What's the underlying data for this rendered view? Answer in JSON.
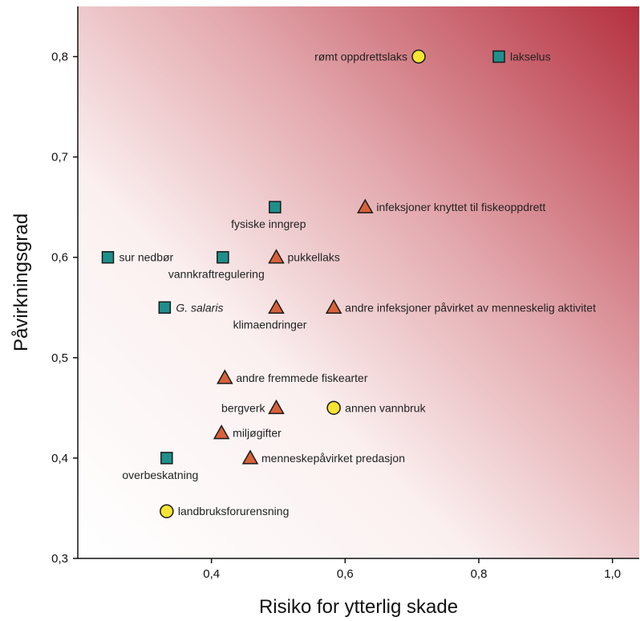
{
  "chart_data": {
    "type": "scatter",
    "xlabel": "Risiko for ytterlig skade",
    "ylabel": "Påvirkningsgrad",
    "xlim": [
      0.2,
      1.04
    ],
    "ylim": [
      0.3,
      0.85
    ],
    "x_ticks": [
      {
        "value": 0.4,
        "label": "0,4"
      },
      {
        "value": 0.6,
        "label": "0,6"
      },
      {
        "value": 0.8,
        "label": "0,8"
      },
      {
        "value": 1.0,
        "label": "1,0"
      }
    ],
    "y_ticks": [
      {
        "value": 0.3,
        "label": "0,3"
      },
      {
        "value": 0.4,
        "label": "0,4"
      },
      {
        "value": 0.5,
        "label": "0,5"
      },
      {
        "value": 0.6,
        "label": "0,6"
      },
      {
        "value": 0.7,
        "label": "0,7"
      },
      {
        "value": 0.8,
        "label": "0,8"
      }
    ],
    "grid": false,
    "background": "gradient white (bottom-left) to dark red (top-right)",
    "marker_styles": {
      "square": {
        "fill": "#1f8f8b",
        "stroke": "#1a1a1a"
      },
      "triangle": {
        "fill": "#d8613a",
        "stroke": "#1a1a1a"
      },
      "circle": {
        "fill": "#f5e431",
        "stroke": "#1a1a1a"
      }
    },
    "points": [
      {
        "label": "rømt oppdrettslaks",
        "x": 0.71,
        "y": 0.8,
        "marker": "circle",
        "label_pos": "left"
      },
      {
        "label": "lakselus",
        "x": 0.83,
        "y": 0.8,
        "marker": "square",
        "label_pos": "right"
      },
      {
        "label": "fysiske inngrep",
        "x": 0.495,
        "y": 0.65,
        "marker": "square",
        "label_pos": "below"
      },
      {
        "label": "infeksjoner knyttet til fiskeoppdrett",
        "x": 0.63,
        "y": 0.65,
        "marker": "triangle",
        "label_pos": "right"
      },
      {
        "label": "sur nedbør",
        "x": 0.245,
        "y": 0.6,
        "marker": "square",
        "label_pos": "right"
      },
      {
        "label": "vannkraftregulering",
        "x": 0.417,
        "y": 0.6,
        "marker": "square",
        "label_pos": "below"
      },
      {
        "label": "pukkellaks",
        "x": 0.497,
        "y": 0.6,
        "marker": "triangle",
        "label_pos": "right"
      },
      {
        "label": "G. salaris",
        "x": 0.33,
        "y": 0.55,
        "marker": "square",
        "label_pos": "right",
        "italic": true
      },
      {
        "label": "klimaendringer",
        "x": 0.497,
        "y": 0.55,
        "marker": "triangle",
        "label_pos": "below"
      },
      {
        "label": "andre infeksjoner påvirket av menneskelig aktivitet",
        "x": 0.583,
        "y": 0.55,
        "marker": "triangle",
        "label_pos": "right"
      },
      {
        "label": "andre fremmede fiskearter",
        "x": 0.42,
        "y": 0.48,
        "marker": "triangle",
        "label_pos": "right"
      },
      {
        "label": "bergverk",
        "x": 0.497,
        "y": 0.45,
        "marker": "triangle",
        "label_pos": "left"
      },
      {
        "label": "annen vannbruk",
        "x": 0.583,
        "y": 0.45,
        "marker": "circle",
        "label_pos": "right"
      },
      {
        "label": "miljøgifter",
        "x": 0.415,
        "y": 0.425,
        "marker": "triangle",
        "label_pos": "right"
      },
      {
        "label": "overbeskatning",
        "x": 0.333,
        "y": 0.4,
        "marker": "square",
        "label_pos": "below"
      },
      {
        "label": "menneskepåvirket predasjon",
        "x": 0.458,
        "y": 0.4,
        "marker": "triangle",
        "label_pos": "right"
      },
      {
        "label": "landbruksforurensning",
        "x": 0.333,
        "y": 0.347,
        "marker": "circle",
        "label_pos": "right"
      }
    ]
  }
}
